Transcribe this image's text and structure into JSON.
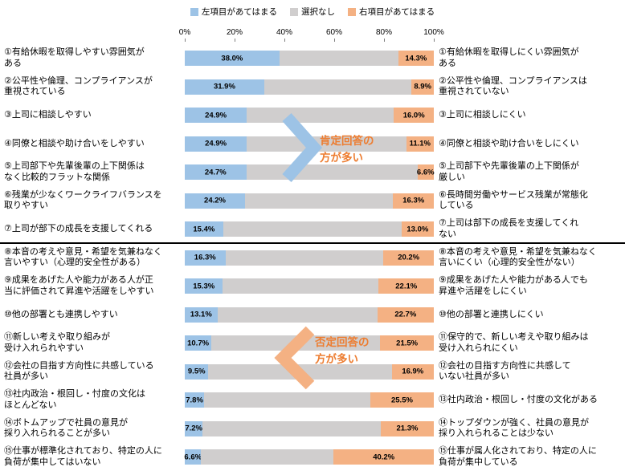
{
  "legend": {
    "items": [
      {
        "label": "左項目があてはまる",
        "color": "#9DC3E6"
      },
      {
        "label": "選択なし",
        "color": "#D0CECE"
      },
      {
        "label": "右項目があてはまる",
        "color": "#F4B183"
      }
    ]
  },
  "axis": {
    "ticks": [
      "0%",
      "20%",
      "40%",
      "60%",
      "80%",
      "100%"
    ]
  },
  "annotations": {
    "positive": {
      "text": "肯定回答の\n方が多い",
      "arrow_direction": "right",
      "arrow_color": "#9DC3E6",
      "text_color": "#ED7D31"
    },
    "negative": {
      "text": "否定回答の\n方が多い",
      "arrow_direction": "left",
      "arrow_color": "#F4B183",
      "text_color": "#ED7D31"
    }
  },
  "chart_data": {
    "type": "bar",
    "variant": "horizontal-diverging-stacked",
    "xlim": [
      0,
      100
    ],
    "x_tick_labels": [
      "0%",
      "20%",
      "40%",
      "60%",
      "80%",
      "100%"
    ],
    "series": [
      "左項目があてはまる",
      "選択なし",
      "右項目があてはまる"
    ],
    "colors": {
      "left": "#9DC3E6",
      "neutral": "#D0CECE",
      "right": "#F4B183"
    },
    "separator_after_row": 7,
    "rows": [
      {
        "left_label": "①有給休暇を取得しやすい雰囲気が\nある",
        "left": 38.0,
        "right": 14.3,
        "right_label": "①有給休暇を取得しにくい雰囲気が\nある"
      },
      {
        "left_label": "②公平性や倫理、コンプライアンスが\n重視されている",
        "left": 31.9,
        "right": 8.9,
        "right_label": "②公平性や倫理、コンプライアンスは\n重視されていない"
      },
      {
        "left_label": "③上司に相談しやすい",
        "left": 24.9,
        "right": 16.0,
        "right_label": "③上司に相談しにくい"
      },
      {
        "left_label": "④同僚と相談や助け合いをしやすい",
        "left": 24.9,
        "right": 11.1,
        "right_label": "④同僚と相談や助け合いをしにくい"
      },
      {
        "left_label": "⑤上司部下や先輩後輩の上下関係は\nなく比較的フラットな関係",
        "left": 24.7,
        "right": 6.6,
        "right_label": "⑤上司部下や先輩後輩の上下関係が\n厳しい"
      },
      {
        "left_label": "⑥残業が少なくワークライフバランスを\n取りやすい",
        "left": 24.2,
        "right": 16.3,
        "right_label": "⑥長時間労働やサービス残業が常態化\nしている"
      },
      {
        "left_label": "⑦上司が部下の成長を支援してくれる",
        "left": 15.4,
        "right": 13.0,
        "right_label": "⑦上司は部下の成長を支援してくれ\nない"
      },
      {
        "left_label": "⑧本音の考えや意見・希望を気兼ねなく\n言いやすい（心理的安全性がある）",
        "left": 16.3,
        "right": 20.2,
        "right_label": "⑧本音の考えや意見・希望を気兼ねなく\n言いにくい（心理的安全性がない）"
      },
      {
        "left_label": "⑨成果をあげた人や能力がある人が正\n当に評価されて昇進や活躍をしやすい",
        "left": 15.3,
        "right": 22.1,
        "right_label": "⑨成果をあげた人や能力がある人でも\n昇進や活躍をしにくい"
      },
      {
        "left_label": "⑩他の部署とも連携しやすい",
        "left": 13.1,
        "right": 22.7,
        "right_label": "⑩他の部署と連携しにくい"
      },
      {
        "left_label": "⑪新しい考えや取り組みが\n受け入れられやすい",
        "left": 10.7,
        "right": 21.5,
        "right_label": "⑪保守的で、新しい考えや取り組みは\n受け入れられにくい"
      },
      {
        "left_label": "⑫会社の目指す方向性に共感している\n社員が多い",
        "left": 9.5,
        "right": 16.9,
        "right_label": "⑫会社の目指す方向性に共感して\nいない社員が多い"
      },
      {
        "left_label": "⑬社内政治・根回し・忖度の文化は\nほとんどない",
        "left": 7.8,
        "right": 25.5,
        "right_label": "⑬社内政治・根回し・忖度の文化がある"
      },
      {
        "left_label": "⑭ボトムアップで社員の意見が\n採り入れられることが多い",
        "left": 7.2,
        "right": 21.3,
        "right_label": "⑭トップダウンが強く、社員の意見が\n採り入れられることは少ない"
      },
      {
        "left_label": "⑮仕事が標準化されており、特定の人に\n負荷が集中してはいない",
        "left": 6.6,
        "right": 40.2,
        "right_label": "⑮仕事が属人化されており、特定の人に\n負荷が集中している"
      }
    ]
  }
}
